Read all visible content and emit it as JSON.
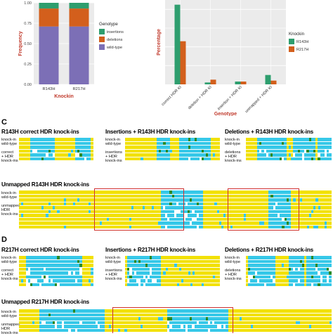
{
  "chart_data": [
    {
      "type": "bar",
      "stacked": true,
      "categories": [
        "R143H",
        "R217H"
      ],
      "series": [
        {
          "name": "wild-type",
          "values": [
            0.71,
            0.71
          ]
        },
        {
          "name": "deletions",
          "values": [
            0.22,
            0.22
          ]
        },
        {
          "name": "insertions",
          "values": [
            0.07,
            0.07
          ]
        }
      ],
      "ylabel": "Frequency",
      "xlabel": "Knockin",
      "ytick_labels": [
        "0.00",
        "0.25",
        "0.50",
        "0.75",
        "1.00"
      ],
      "ylim": [
        0,
        1
      ],
      "legend_title": "Genotype",
      "legend_position": "right",
      "colors": {
        "insertions": "#2e9e6e",
        "deletions": "#d35f1c",
        "wild-type": "#7c6fb6"
      }
    },
    {
      "type": "bar",
      "categories": [
        "correct HDR KI",
        "deletion + HDR KI",
        "insertion + HDR KI",
        "unmapped + HDR KI"
      ],
      "series": [
        {
          "name": "R143H",
          "values": [
            0.85,
            0.02,
            0.03,
            0.1
          ]
        },
        {
          "name": "R217H",
          "values": [
            0.46,
            0.05,
            0.03,
            0.04
          ]
        }
      ],
      "ylabel": "Percentage",
      "xlabel": "Genotype",
      "ylim": [
        0,
        0.9
      ],
      "legend_title": "Knockin",
      "legend_position": "right",
      "colors": {
        "R143H": "#2e9e6e",
        "R217H": "#d35f1c"
      }
    }
  ],
  "panels": {
    "c": {
      "letter": "C",
      "titles": {
        "correct": "R143H correct HDR knock-ins",
        "insertions": "Insertions + R143H HDR knock-ins",
        "deletions": "Deletions + R143H HDR knock-ins",
        "unmapped": "Unmapped R143H HDR knock-ins"
      },
      "labels": {
        "knockin": "knock-in",
        "wildtype": "wild-type",
        "correct": "correct\n+ HDR\nknock-ins",
        "insertions": "insertions\n+ HDR\nknock-ins",
        "deletions": "deletions\n+ HDR\nknock-ins",
        "unmapped": "unmapped\nHDR\nknock-ins"
      }
    },
    "d": {
      "letter": "D",
      "titles": {
        "correct": "R217H correct HDR knock-ins",
        "insertions": "Insertions + R217H HDR knock-ins",
        "deletions": "Deletions + R217H HDR knock-ins",
        "unmapped": "Unmapped R217H HDR knock-ins"
      },
      "labels": {
        "knockin": "knock-in",
        "wildtype": "wild-type",
        "correct": "correct\n+ HDR\nknock-ins",
        "insertions": "insertions\n+ HDR\nknock-ins",
        "deletions": "deletions\n+ HDR\nknock-ins",
        "unmapped": "unmapped\nHDR\nknock-ins"
      }
    }
  },
  "alignment_colors": {
    "base": "#f2e100",
    "match": "#36c8e8",
    "variant": "#2a8a2a"
  }
}
